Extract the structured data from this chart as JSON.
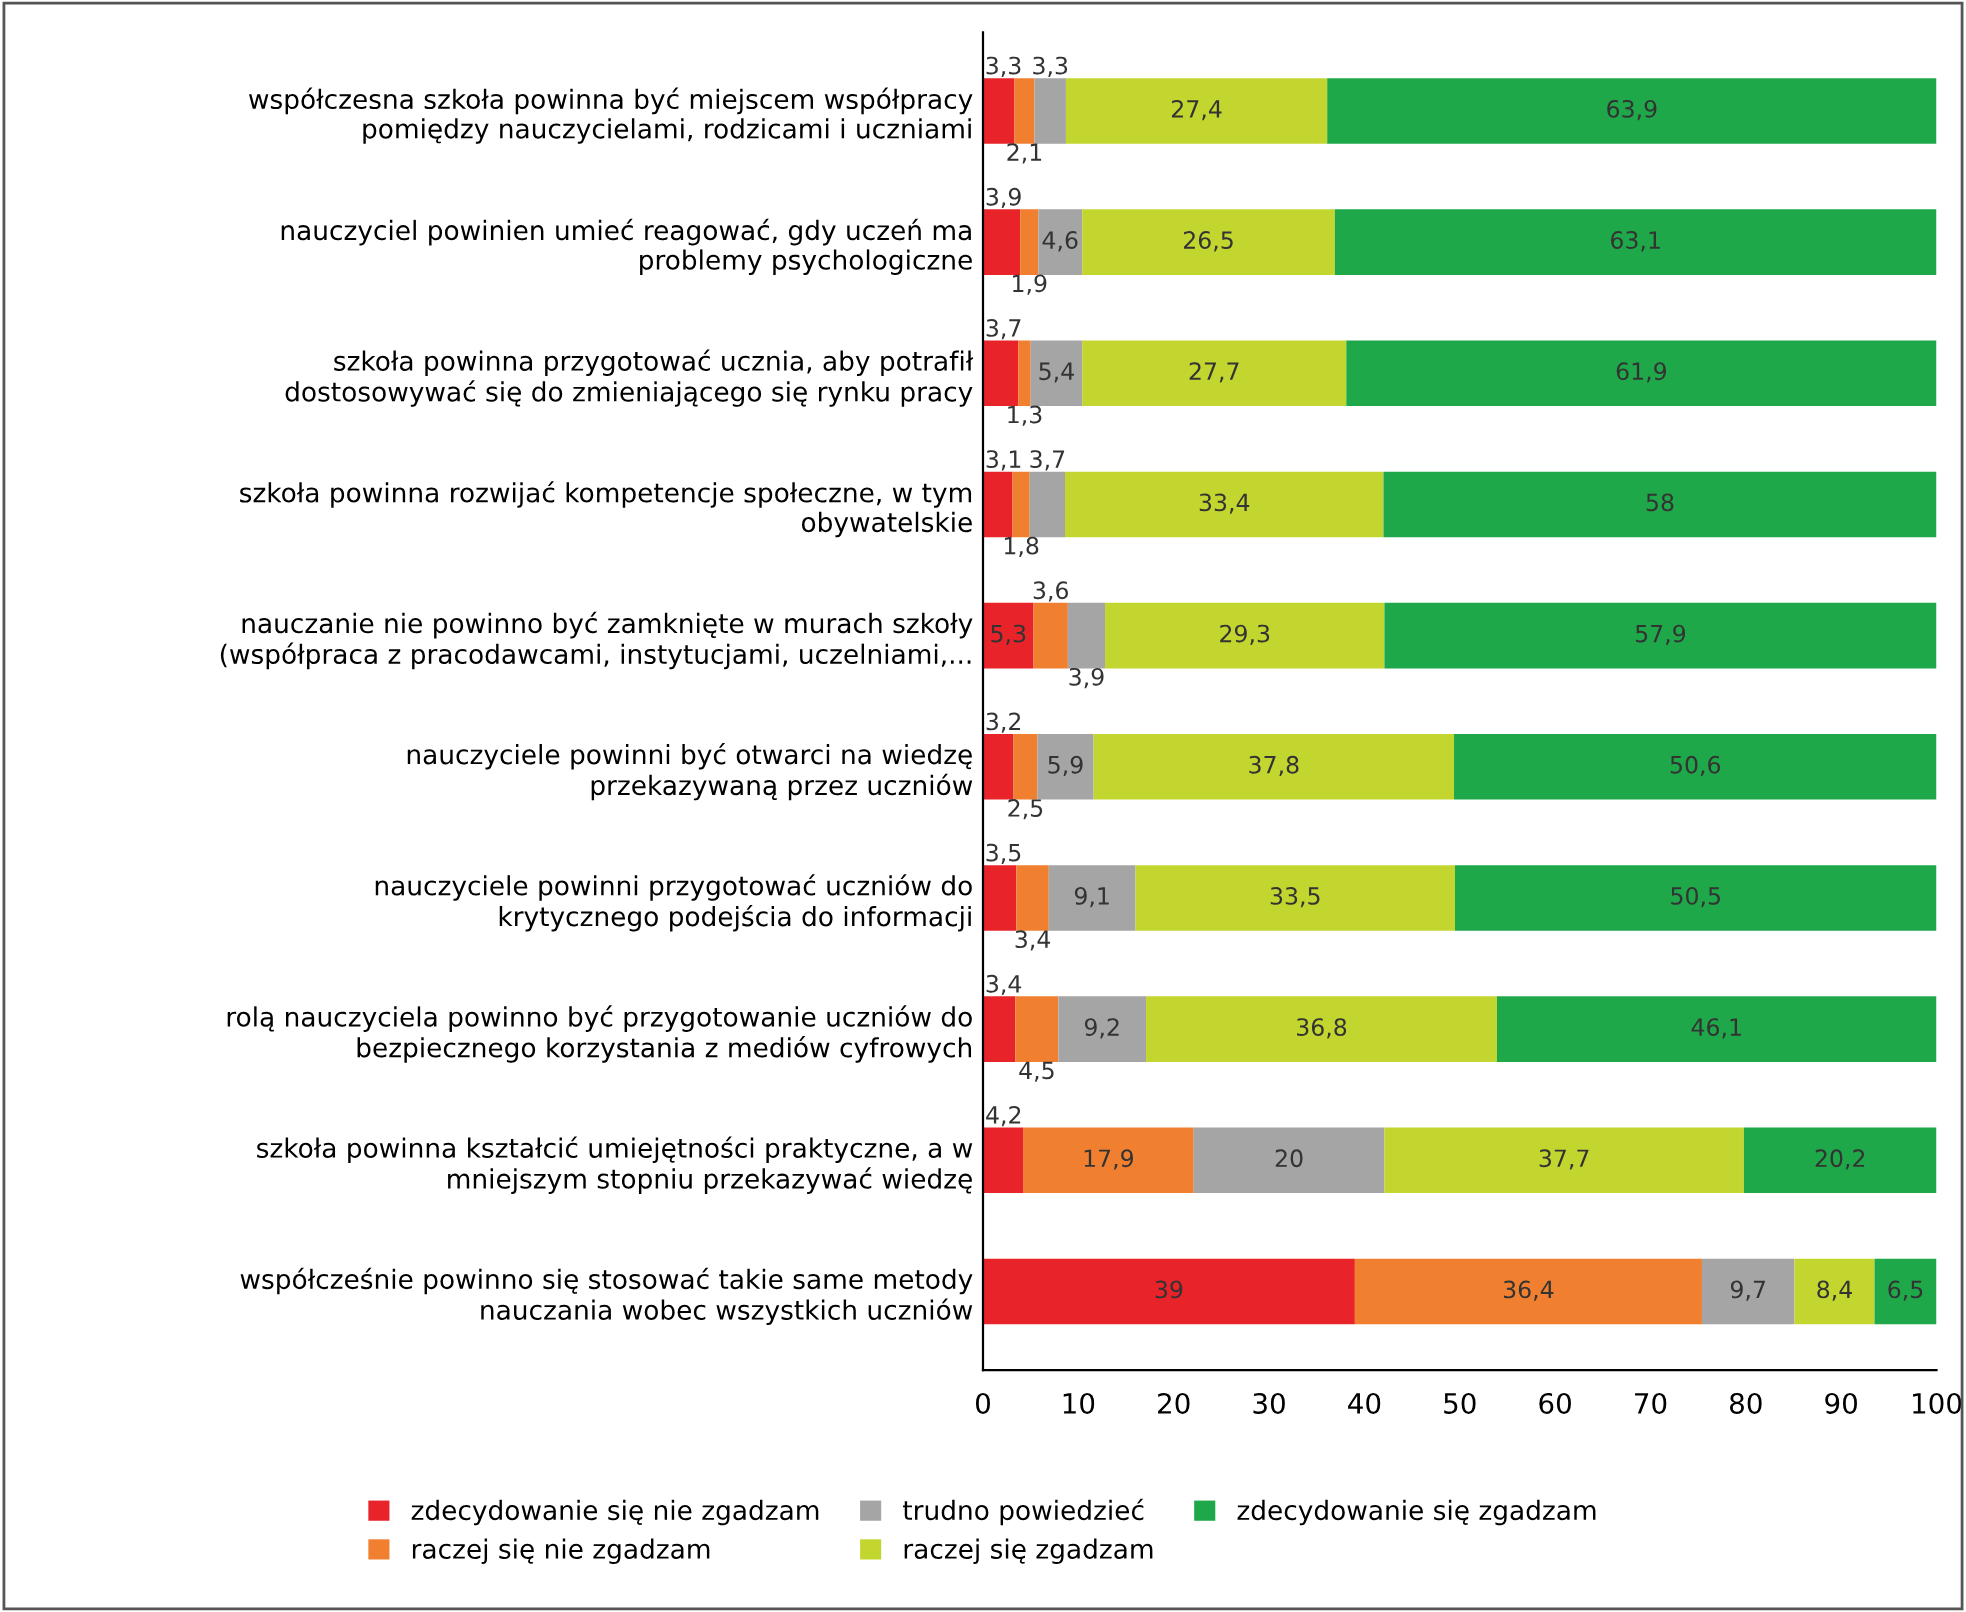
{
  "chart_data": {
    "type": "bar",
    "orientation": "horizontal",
    "stacked": true,
    "categories": [
      "współczesna szkoła powinna być miejscem współpracy\npomiędzy nauczycielami, rodzicami i uczniami",
      "nauczyciel powinien umieć reagować, gdy uczeń ma\nproblemy psychologiczne",
      "szkoła powinna przygotować ucznia, aby potrafił\ndostosowywać się do zmieniającego się rynku pracy",
      "szkoła powinna rozwijać kompetencje społeczne, w tym\nobywatelskie",
      "nauczanie nie powinno być zamknięte w murach szkoły\n(współpraca z pracodawcami, instytucjami, uczelniami,...",
      "nauczyciele powinni być otwarci na wiedzę\nprzekazywaną przez uczniów",
      "nauczyciele powinni przygotować uczniów do\nkrytycznego podejścia do informacji",
      "rolą nauczyciela powinno być przygotowanie uczniów do\nbezpiecznego korzystania z mediów cyfrowych",
      "szkoła powinna kształcić umiejętności praktyczne, a w\nmniejszym stopniu przekazywać wiedzę",
      "współcześnie powinno się stosować takie same metody\nnauczania wobec wszystkich uczniów"
    ],
    "series": [
      {
        "name": "zdecydowanie się nie zgadzam",
        "color": "#e8242a",
        "values": [
          3.3,
          3.9,
          3.7,
          3.1,
          5.3,
          3.2,
          3.5,
          3.4,
          4.2,
          39
        ],
        "value_labels": [
          "3,3",
          "3,9",
          "3,7",
          "3,1",
          "5,3",
          "3,2",
          "3,5",
          "3,4",
          "4,2",
          "39"
        ]
      },
      {
        "name": "raczej się nie zgadzam",
        "color": "#f08030",
        "values": [
          2.1,
          1.9,
          1.3,
          1.8,
          3.6,
          2.5,
          3.4,
          4.5,
          17.9,
          36.4
        ],
        "value_labels": [
          "2,1",
          "1,9",
          "1,3",
          "1,8",
          "3,6",
          "2,5",
          "3,4",
          "4,5",
          "17,9",
          "36,4"
        ]
      },
      {
        "name": "trudno powiedzieć",
        "color": "#a5a5a5",
        "values": [
          3.3,
          4.6,
          5.4,
          3.7,
          3.9,
          5.9,
          9.1,
          9.2,
          20,
          9.7
        ],
        "value_labels": [
          "3,3",
          "4,6",
          "5,4",
          "3,7",
          "3,9",
          "5,9",
          "9,1",
          "9,2",
          "20",
          "9,7"
        ]
      },
      {
        "name": "raczej się zgadzam",
        "color": "#c3d630",
        "values": [
          27.4,
          26.5,
          27.7,
          33.4,
          29.3,
          37.8,
          33.5,
          36.8,
          37.7,
          8.4
        ],
        "value_labels": [
          "27,4",
          "26,5",
          "27,7",
          "33,4",
          "29,3",
          "37,8",
          "33,5",
          "36,8",
          "37,7",
          "8,4"
        ]
      },
      {
        "name": "zdecydowanie się zgadzam",
        "color": "#1fa84a",
        "values": [
          63.9,
          63.1,
          61.9,
          58,
          57.9,
          50.6,
          50.5,
          46.1,
          20.2,
          6.5
        ],
        "value_labels": [
          "63,9",
          "63,1",
          "61,9",
          "58",
          "57,9",
          "50,6",
          "50,5",
          "46,1",
          "20,2",
          "6,5"
        ]
      }
    ],
    "xlim": [
      0,
      100
    ],
    "xticks": [
      0,
      10,
      20,
      30,
      40,
      50,
      60,
      70,
      80,
      90,
      100
    ],
    "grid": false,
    "legend": "bottom"
  }
}
